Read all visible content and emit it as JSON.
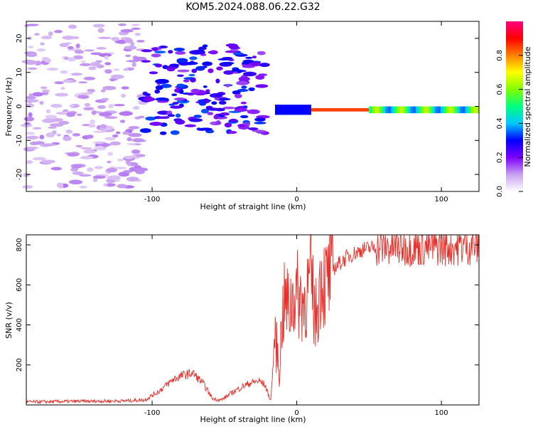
{
  "title": "KOM5.2024.088.06.22.G32",
  "chart_data": [
    {
      "type": "heatmap",
      "title": "KOM5.2024.088.06.22.G32",
      "xlabel": "Height of straight line (km)",
      "ylabel": "Frequency (Hz)",
      "xlim": [
        -187,
        126
      ],
      "ylim": [
        -25,
        25
      ],
      "x_ticks": [
        -100,
        0,
        100
      ],
      "x_tick_labels": [
        "-100",
        "0",
        "100"
      ],
      "y_ticks": [
        -20,
        -10,
        0,
        10,
        20
      ],
      "y_tick_labels": [
        "-20",
        "-10",
        "0",
        "10",
        "20"
      ],
      "colorbar": {
        "label": "Normalized spectral amplitude",
        "range": [
          0,
          1
        ],
        "ticks": [
          0.0,
          0.2,
          0.4,
          0.6,
          0.8
        ],
        "tick_labels": [
          "0.0",
          "0.2",
          "0.4",
          "0.6",
          "0.8"
        ],
        "colors": [
          "#ffffff",
          "#c8a0f0",
          "#7b00ff",
          "#0000ff",
          "#00c8ff",
          "#00ff80",
          "#80ff00",
          "#ffff00",
          "#ff8000",
          "#ff0000",
          "#ff0080"
        ]
      },
      "bands": [
        {
          "x_start": -187,
          "x_end": -105,
          "freq_min": -24,
          "freq_max": 24,
          "amplitude": 0.05
        },
        {
          "x_start": -105,
          "x_end": -22,
          "freq_min": -8,
          "freq_max": 18,
          "amplitude": 0.15
        },
        {
          "x_start": -15,
          "x_end": 10,
          "freq_min": -2.5,
          "freq_max": 0.5,
          "amplitude": 0.3
        },
        {
          "x_start": 10,
          "x_end": 50,
          "freq_min": -1.5,
          "freq_max": -0.5,
          "amplitude": 0.85
        },
        {
          "x_start": 50,
          "x_end": 126,
          "freq_min": -2,
          "freq_max": 0,
          "amplitude": 0.5
        }
      ]
    },
    {
      "type": "line",
      "xlabel": "Height of straight line (km)",
      "ylabel": "SNR (v/v)",
      "xlim": [
        -187,
        126
      ],
      "ylim": [
        0,
        850
      ],
      "x_ticks": [
        -100,
        0,
        100
      ],
      "x_tick_labels": [
        "-100",
        "0",
        "100"
      ],
      "y_ticks": [
        200,
        400,
        600,
        800
      ],
      "y_tick_labels": [
        "200",
        "400",
        "600",
        "800"
      ],
      "color": "#e8302a",
      "series": [
        {
          "x": [
            -187,
            -150,
            -120,
            -105,
            -95,
            -85,
            -78,
            -72,
            -65,
            -58,
            -52,
            -45,
            -38,
            -32,
            -26,
            -22,
            -18,
            -15,
            -12,
            -10,
            -8,
            -5,
            -2,
            0,
            5,
            10,
            13,
            17,
            20,
            25,
            35,
            45,
            55,
            70,
            90,
            110,
            126
          ],
          "y": [
            15,
            18,
            20,
            25,
            70,
            130,
            150,
            160,
            110,
            30,
            25,
            60,
            90,
            110,
            120,
            100,
            20,
            350,
            180,
            450,
            520,
            480,
            560,
            550,
            520,
            620,
            430,
            650,
            600,
            680,
            740,
            775,
            790,
            790,
            790,
            795,
            800
          ]
        }
      ]
    }
  ]
}
